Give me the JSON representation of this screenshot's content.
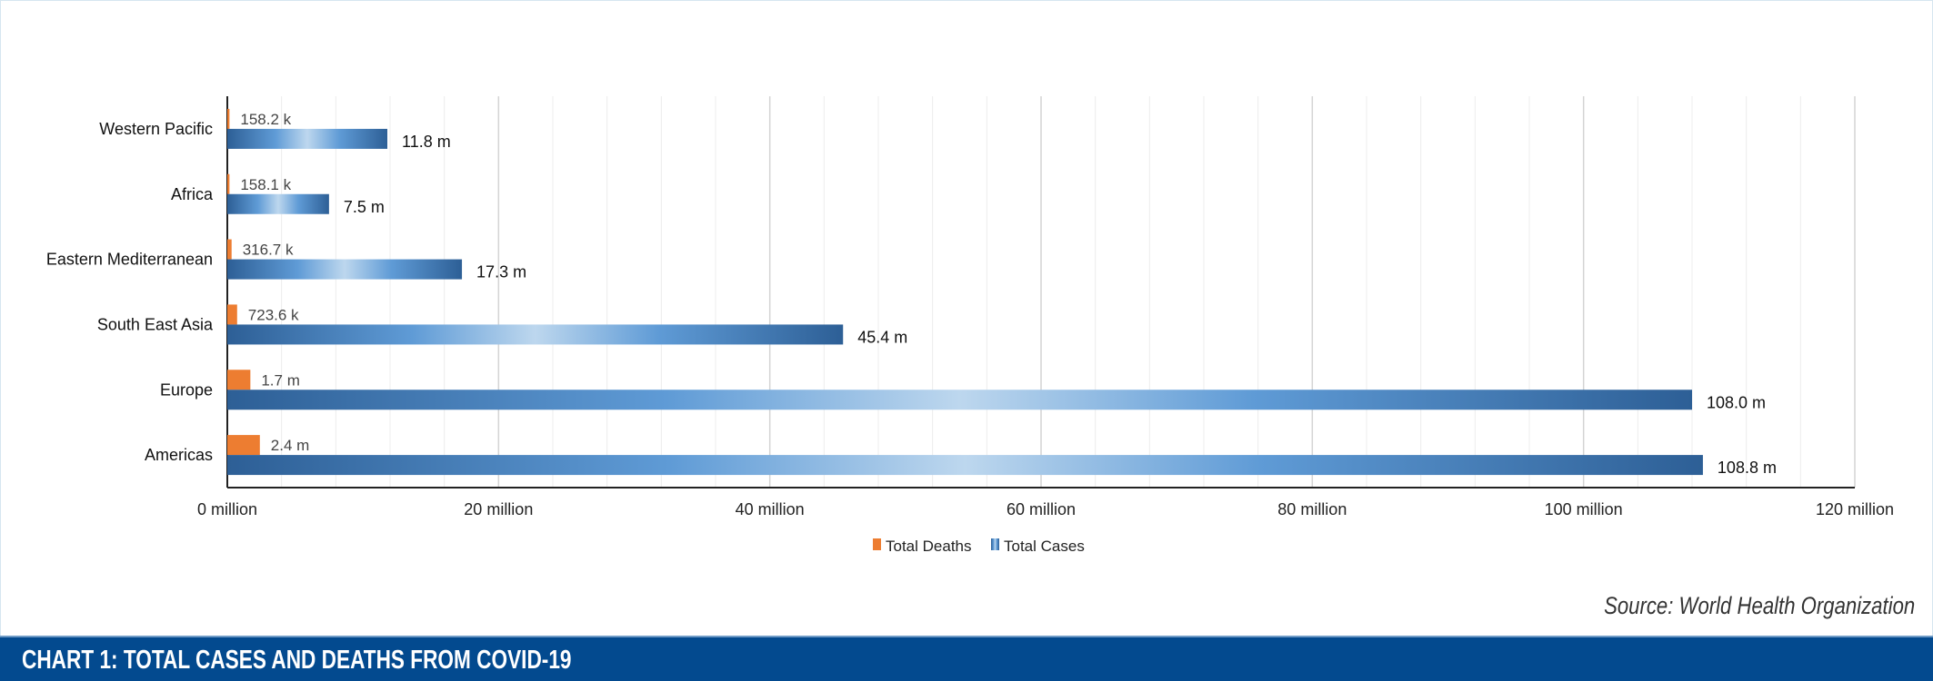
{
  "chart_data": {
    "type": "bar",
    "orientation": "horizontal",
    "categories": [
      "Western Pacific",
      "Africa",
      "Eastern Mediterranean",
      "South East Asia",
      "Europe",
      "Americas"
    ],
    "series": [
      {
        "name": "Total Deaths",
        "color": "#ED7D31",
        "values": [
          0.1582,
          0.1581,
          0.3167,
          0.7236,
          1.7,
          2.4
        ],
        "labels": [
          "158.2 k",
          "158.1 k",
          "316.7 k",
          "723.6 k",
          "1.7 m",
          "2.4 m"
        ]
      },
      {
        "name": "Total Cases",
        "color": "#5B9BD5",
        "values": [
          11.8,
          7.5,
          17.3,
          45.4,
          108.0,
          108.8
        ],
        "labels": [
          "11.8 m",
          "7.5 m",
          "17.3 m",
          "45.4 m",
          "108.0 m",
          "108.8 m"
        ]
      }
    ],
    "xlim": [
      0,
      120
    ],
    "xunit": "million",
    "xticks": [
      "0 million",
      "20 million",
      "40 million",
      "60 million",
      "80 million",
      "100 million",
      "120 million"
    ],
    "grid": true,
    "legend": "bottom"
  },
  "source": "Source: World Health Organization",
  "footer": {
    "title": "CHART 1: TOTAL CASES AND DEATHS FROM COVID-19"
  }
}
